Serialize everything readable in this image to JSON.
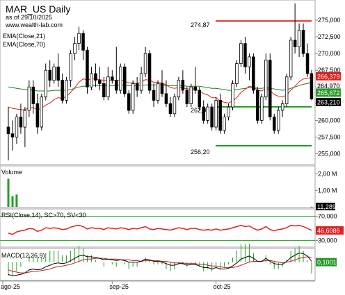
{
  "header": {
    "title": "MAR_US Daily",
    "asof": "as of 29/10/2025",
    "site": "www.wealth-lab.com",
    "ema21_label": "EMA(Close,21)",
    "ema70_label": "EMA(Close,70)"
  },
  "colors": {
    "up": "#ffffff",
    "down": "#000000",
    "ema21": "#e02020",
    "ema70": "#208020",
    "resistance": "#e02020",
    "support": "#18a018",
    "volume": "#20a020",
    "rsi": "#e02020",
    "rsi_band": "#18a018",
    "macd": "#000000",
    "macd_signal": "#c02020",
    "macd_hist": "#20a020"
  },
  "price_axis": {
    "ticks": [
      "275,000",
      "272,500",
      "270,000",
      "267,500",
      "265,000",
      "262,500",
      "260,000",
      "257,500",
      "255,000"
    ],
    "tags": {
      "ema21": "266,379",
      "ema70": "265,672",
      "close": "263,210",
      "last_box": "264,970"
    }
  },
  "levels": {
    "resistance_label": "274,87",
    "support_label": "262,03",
    "support2_label": "256,20"
  },
  "volume_panel": {
    "label": "Volume",
    "ticks": [
      "2,00 M",
      "1,00 M"
    ],
    "current": "11,289"
  },
  "rsi_panel": {
    "label": "RSI(Close,14), SC>70, SV<30",
    "ticks": [
      "70,000",
      "30,000"
    ],
    "current": "46,6086"
  },
  "macd_panel": {
    "label": "MACD(12,26,9)",
    "current": "0,1001"
  },
  "date_axis": {
    "labels": [
      "ago-25",
      "sep-25",
      "oct-25"
    ]
  },
  "chart_data": {
    "type": "candlestick",
    "title": "MAR_US Daily",
    "ylim": [
      253.5,
      277.8
    ],
    "candles": [
      {
        "o": 259.0,
        "h": 262.0,
        "l": 254.0,
        "c": 258.0
      },
      {
        "o": 258.0,
        "h": 260.0,
        "l": 255.5,
        "c": 257.5
      },
      {
        "o": 257.5,
        "h": 261.0,
        "l": 256.5,
        "c": 260.5
      },
      {
        "o": 260.5,
        "h": 262.5,
        "l": 258.0,
        "c": 259.0
      },
      {
        "o": 259.0,
        "h": 262.0,
        "l": 256.0,
        "c": 261.5
      },
      {
        "o": 261.5,
        "h": 266.0,
        "l": 260.5,
        "c": 265.0
      },
      {
        "o": 265.0,
        "h": 266.0,
        "l": 261.0,
        "c": 262.5
      },
      {
        "o": 262.5,
        "h": 264.0,
        "l": 258.0,
        "c": 259.0
      },
      {
        "o": 259.0,
        "h": 264.0,
        "l": 258.5,
        "c": 263.5
      },
      {
        "o": 263.5,
        "h": 268.5,
        "l": 263.0,
        "c": 267.5
      },
      {
        "o": 267.5,
        "h": 269.0,
        "l": 265.0,
        "c": 266.0
      },
      {
        "o": 266.0,
        "h": 268.5,
        "l": 265.5,
        "c": 268.0
      },
      {
        "o": 268.0,
        "h": 270.0,
        "l": 265.0,
        "c": 266.0
      },
      {
        "o": 266.0,
        "h": 267.0,
        "l": 262.5,
        "c": 263.0
      },
      {
        "o": 263.0,
        "h": 266.5,
        "l": 262.5,
        "c": 266.0
      },
      {
        "o": 266.0,
        "h": 270.5,
        "l": 265.0,
        "c": 270.0
      },
      {
        "o": 270.0,
        "h": 272.5,
        "l": 269.0,
        "c": 271.5
      },
      {
        "o": 271.5,
        "h": 274.0,
        "l": 270.5,
        "c": 273.0
      },
      {
        "o": 273.0,
        "h": 273.5,
        "l": 269.0,
        "c": 270.5
      },
      {
        "o": 270.5,
        "h": 271.0,
        "l": 264.0,
        "c": 265.0
      },
      {
        "o": 265.0,
        "h": 268.0,
        "l": 264.5,
        "c": 267.0
      },
      {
        "o": 267.0,
        "h": 268.5,
        "l": 265.0,
        "c": 266.0
      },
      {
        "o": 266.0,
        "h": 268.0,
        "l": 264.5,
        "c": 265.5
      },
      {
        "o": 265.5,
        "h": 266.5,
        "l": 263.0,
        "c": 263.5
      },
      {
        "o": 263.5,
        "h": 268.0,
        "l": 263.0,
        "c": 266.5
      },
      {
        "o": 266.5,
        "h": 267.5,
        "l": 265.5,
        "c": 266.0
      },
      {
        "o": 266.0,
        "h": 271.0,
        "l": 264.0,
        "c": 264.5
      },
      {
        "o": 264.5,
        "h": 268.5,
        "l": 264.0,
        "c": 268.0
      },
      {
        "o": 268.0,
        "h": 268.5,
        "l": 263.5,
        "c": 264.0
      },
      {
        "o": 264.0,
        "h": 264.5,
        "l": 261.0,
        "c": 261.5
      },
      {
        "o": 261.5,
        "h": 266.0,
        "l": 261.0,
        "c": 265.5
      },
      {
        "o": 265.5,
        "h": 266.5,
        "l": 263.5,
        "c": 264.5
      },
      {
        "o": 264.5,
        "h": 268.0,
        "l": 264.0,
        "c": 267.0
      },
      {
        "o": 267.0,
        "h": 271.0,
        "l": 266.5,
        "c": 270.0
      },
      {
        "o": 270.0,
        "h": 270.5,
        "l": 264.0,
        "c": 264.5
      },
      {
        "o": 264.5,
        "h": 265.5,
        "l": 262.0,
        "c": 263.0
      },
      {
        "o": 263.0,
        "h": 266.0,
        "l": 262.5,
        "c": 265.5
      },
      {
        "o": 265.5,
        "h": 267.5,
        "l": 263.5,
        "c": 264.0
      },
      {
        "o": 264.0,
        "h": 266.0,
        "l": 262.0,
        "c": 262.5
      },
      {
        "o": 262.5,
        "h": 263.5,
        "l": 260.5,
        "c": 261.0
      },
      {
        "o": 261.0,
        "h": 264.0,
        "l": 260.5,
        "c": 263.5
      },
      {
        "o": 263.5,
        "h": 266.5,
        "l": 263.0,
        "c": 266.0
      },
      {
        "o": 266.0,
        "h": 267.5,
        "l": 264.0,
        "c": 264.5
      },
      {
        "o": 264.5,
        "h": 265.0,
        "l": 262.0,
        "c": 262.5
      },
      {
        "o": 262.5,
        "h": 265.5,
        "l": 262.0,
        "c": 265.0
      },
      {
        "o": 265.0,
        "h": 268.0,
        "l": 264.0,
        "c": 264.5
      },
      {
        "o": 264.5,
        "h": 265.0,
        "l": 261.5,
        "c": 262.0
      },
      {
        "o": 262.0,
        "h": 263.0,
        "l": 259.5,
        "c": 260.0
      },
      {
        "o": 260.0,
        "h": 262.5,
        "l": 259.5,
        "c": 262.0
      },
      {
        "o": 262.0,
        "h": 262.5,
        "l": 258.5,
        "c": 259.0
      },
      {
        "o": 259.0,
        "h": 263.5,
        "l": 258.5,
        "c": 263.0
      },
      {
        "o": 263.0,
        "h": 264.0,
        "l": 258.0,
        "c": 258.5
      },
      {
        "o": 258.5,
        "h": 261.0,
        "l": 258.0,
        "c": 260.5
      },
      {
        "o": 260.5,
        "h": 262.5,
        "l": 260.0,
        "c": 262.0
      },
      {
        "o": 262.0,
        "h": 266.0,
        "l": 261.5,
        "c": 265.5
      },
      {
        "o": 265.5,
        "h": 269.0,
        "l": 265.0,
        "c": 268.5
      },
      {
        "o": 268.5,
        "h": 272.0,
        "l": 268.0,
        "c": 271.5
      },
      {
        "o": 271.5,
        "h": 272.5,
        "l": 267.0,
        "c": 268.0
      },
      {
        "o": 268.0,
        "h": 270.0,
        "l": 266.0,
        "c": 269.5
      },
      {
        "o": 269.5,
        "h": 270.0,
        "l": 264.0,
        "c": 264.5
      },
      {
        "o": 264.5,
        "h": 265.0,
        "l": 259.5,
        "c": 260.0
      },
      {
        "o": 260.0,
        "h": 264.0,
        "l": 259.5,
        "c": 263.5
      },
      {
        "o": 263.5,
        "h": 270.0,
        "l": 263.0,
        "c": 269.0
      },
      {
        "o": 269.0,
        "h": 270.0,
        "l": 260.0,
        "c": 260.5
      },
      {
        "o": 260.5,
        "h": 261.0,
        "l": 258.0,
        "c": 258.5
      },
      {
        "o": 258.5,
        "h": 262.0,
        "l": 258.0,
        "c": 261.5
      },
      {
        "o": 261.5,
        "h": 263.0,
        "l": 260.5,
        "c": 262.5
      },
      {
        "o": 262.5,
        "h": 267.0,
        "l": 262.0,
        "c": 266.5
      },
      {
        "o": 266.5,
        "h": 272.5,
        "l": 266.0,
        "c": 272.0
      },
      {
        "o": 272.0,
        "h": 277.5,
        "l": 270.0,
        "c": 271.0
      },
      {
        "o": 271.0,
        "h": 274.5,
        "l": 269.5,
        "c": 273.5
      },
      {
        "o": 273.5,
        "h": 274.5,
        "l": 269.5,
        "c": 270.0
      },
      {
        "o": 270.0,
        "h": 271.5,
        "l": 266.5,
        "c": 267.0
      },
      {
        "o": 267.0,
        "h": 267.5,
        "l": 263.0,
        "c": 263.2
      }
    ],
    "ema21": [
      262.0,
      261.8,
      261.7,
      261.6,
      261.6,
      261.9,
      261.9,
      261.6,
      261.8,
      262.3,
      262.6,
      263.1,
      263.4,
      263.3,
      263.6,
      264.2,
      264.9,
      265.7,
      266.2,
      266.1,
      266.2,
      266.2,
      266.1,
      266.0,
      266.0,
      266.0,
      265.9,
      266.1,
      265.9,
      265.6,
      265.6,
      265.5,
      265.7,
      266.1,
      266.0,
      265.7,
      265.7,
      265.6,
      265.3,
      264.9,
      264.8,
      264.9,
      264.9,
      264.7,
      264.7,
      264.7,
      264.4,
      264.0,
      263.8,
      263.4,
      263.4,
      262.9,
      262.7,
      262.6,
      262.9,
      263.4,
      264.2,
      264.6,
      265.1,
      265.0,
      264.5,
      264.4,
      264.8,
      264.4,
      263.9,
      263.6,
      263.5,
      263.8,
      264.5,
      265.1,
      265.8,
      266.2,
      266.3,
      266.4
    ],
    "ema70": [
      265.0,
      264.9,
      264.8,
      264.7,
      264.6,
      264.6,
      264.5,
      264.4,
      264.4,
      264.4,
      264.4,
      264.5,
      264.5,
      264.5,
      264.5,
      264.6,
      264.8,
      265.0,
      265.1,
      265.1,
      265.2,
      265.2,
      265.2,
      265.2,
      265.2,
      265.2,
      265.2,
      265.3,
      265.3,
      265.2,
      265.2,
      265.2,
      265.2,
      265.3,
      265.3,
      265.3,
      265.3,
      265.3,
      265.2,
      265.2,
      265.2,
      265.2,
      265.2,
      265.1,
      265.1,
      265.1,
      265.1,
      265.0,
      264.9,
      264.8,
      264.8,
      264.7,
      264.6,
      264.5,
      264.5,
      264.6,
      264.7,
      264.8,
      264.9,
      264.9,
      264.8,
      264.8,
      264.9,
      264.8,
      264.7,
      264.6,
      264.5,
      264.6,
      264.8,
      265.0,
      265.2,
      265.4,
      265.5,
      265.7
    ],
    "volume": [
      1.7,
      0.65,
      0.75,
      0,
      0,
      0,
      0,
      0,
      0,
      0,
      0,
      0,
      0,
      0,
      0,
      0,
      0,
      0,
      0,
      0,
      0,
      0,
      0,
      0,
      0,
      0,
      0,
      0,
      0,
      0,
      0,
      0,
      0,
      0,
      0,
      0,
      0,
      0,
      0,
      0,
      0,
      0,
      0,
      0,
      0,
      0,
      0,
      0,
      0,
      0,
      0,
      0,
      0,
      0,
      0,
      0,
      0,
      0,
      0,
      0,
      0,
      0,
      0,
      0,
      0,
      0,
      0,
      0,
      0,
      0,
      0,
      0,
      0,
      0.01
    ],
    "volume_ylim": [
      0,
      2.4
    ],
    "rsi": [
      42,
      40,
      44,
      46,
      47,
      50,
      49,
      45,
      47,
      51,
      50,
      51,
      50,
      48,
      49,
      52,
      54,
      55,
      53,
      49,
      51,
      50,
      50,
      48,
      51,
      50,
      49,
      51,
      50,
      48,
      50,
      49,
      51,
      53,
      49,
      48,
      50,
      49,
      48,
      47,
      49,
      51,
      50,
      48,
      50,
      50,
      48,
      47,
      48,
      47,
      49,
      47,
      48,
      49,
      51,
      53,
      55,
      53,
      54,
      50,
      47,
      49,
      53,
      48,
      46,
      48,
      49,
      51,
      55,
      54,
      55,
      53,
      50,
      46.6
    ],
    "rsi_ylim": [
      20,
      80
    ],
    "rsi_band": [
      70,
      30
    ],
    "macd": [
      -1.6,
      -1.8,
      -1.7,
      -1.6,
      -1.4,
      -1.0,
      -0.9,
      -1.0,
      -0.9,
      -0.6,
      -0.4,
      -0.2,
      -0.1,
      -0.2,
      -0.1,
      0.2,
      0.5,
      0.8,
      0.9,
      0.7,
      0.7,
      0.6,
      0.5,
      0.3,
      0.4,
      0.3,
      0.2,
      0.3,
      0.2,
      0.0,
      0.0,
      0.0,
      0.1,
      0.4,
      0.3,
      0.1,
      0.1,
      0.0,
      -0.2,
      -0.4,
      -0.4,
      -0.2,
      -0.2,
      -0.4,
      -0.3,
      -0.3,
      -0.5,
      -0.7,
      -0.7,
      -0.9,
      -0.7,
      -0.9,
      -0.9,
      -0.8,
      -0.5,
      -0.1,
      0.4,
      0.6,
      0.8,
      0.5,
      0.1,
      0.1,
      0.5,
      0.1,
      -0.2,
      -0.3,
      -0.3,
      0.1,
      0.6,
      0.9,
      1.2,
      1.1,
      0.8,
      0.1
    ],
    "macd_signal": [
      -1.0,
      -1.2,
      -1.3,
      -1.4,
      -1.4,
      -1.3,
      -1.2,
      -1.2,
      -1.1,
      -1.0,
      -0.9,
      -0.7,
      -0.6,
      -0.5,
      -0.4,
      -0.3,
      -0.1,
      0.1,
      0.3,
      0.4,
      0.4,
      0.5,
      0.5,
      0.5,
      0.4,
      0.4,
      0.4,
      0.3,
      0.3,
      0.3,
      0.2,
      0.2,
      0.1,
      0.2,
      0.2,
      0.2,
      0.2,
      0.1,
      0.1,
      0.0,
      -0.1,
      -0.1,
      -0.1,
      -0.2,
      -0.2,
      -0.2,
      -0.3,
      -0.3,
      -0.4,
      -0.5,
      -0.5,
      -0.6,
      -0.7,
      -0.7,
      -0.7,
      -0.6,
      -0.4,
      -0.2,
      0.0,
      0.1,
      0.1,
      0.1,
      0.2,
      0.2,
      0.1,
      0.0,
      -0.1,
      0.0,
      0.1,
      0.3,
      0.5,
      0.6,
      0.7,
      0.6
    ],
    "macd_ylim": [
      -2.3,
      1.6
    ],
    "levels": {
      "resistance": 274.87,
      "support": 262.03,
      "support2": 256.2
    },
    "date_labels": [
      {
        "index": 0,
        "label": "ago-25"
      },
      {
        "index": 25,
        "label": "sep-25"
      },
      {
        "index": 50,
        "label": "oct-25"
      }
    ]
  }
}
